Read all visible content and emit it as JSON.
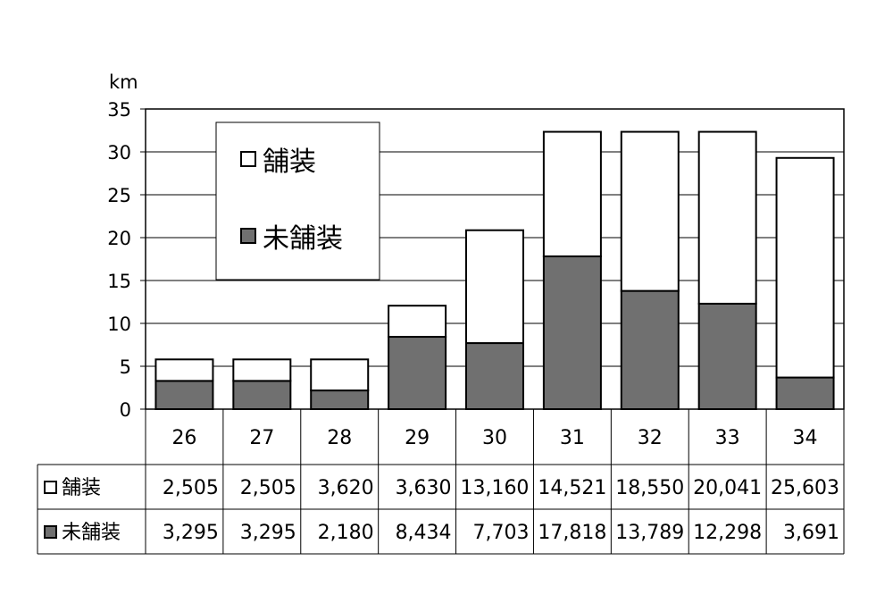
{
  "chart_data": {
    "type": "bar",
    "stacked": true,
    "ylabel": "km",
    "ylim": [
      0,
      35
    ],
    "yticks": [
      0,
      5,
      10,
      15,
      20,
      25,
      30,
      35
    ],
    "grid": true,
    "legend_position": "top-left",
    "categories": [
      "26",
      "27",
      "28",
      "29",
      "30",
      "31",
      "32",
      "33",
      "34"
    ],
    "series": [
      {
        "name": "未舗装",
        "color": "#707070",
        "values": [
          3.295,
          3.295,
          2.18,
          8.434,
          7.703,
          17.818,
          13.789,
          12.298,
          3.691
        ],
        "labels": [
          "3,295",
          "3,295",
          "2,180",
          "8,434",
          "7,703",
          "17,818",
          "13,789",
          "12,298",
          "3,691"
        ],
        "marker": "■"
      },
      {
        "name": "舗装",
        "color": "#ffffff",
        "values": [
          2.505,
          2.505,
          3.62,
          3.63,
          13.16,
          14.521,
          18.55,
          20.041,
          25.603
        ],
        "labels": [
          "2,505",
          "2,505",
          "3,620",
          "3,630",
          "13,160",
          "14,521",
          "18,550",
          "20,041",
          "25,603"
        ],
        "marker": "□"
      }
    ]
  }
}
